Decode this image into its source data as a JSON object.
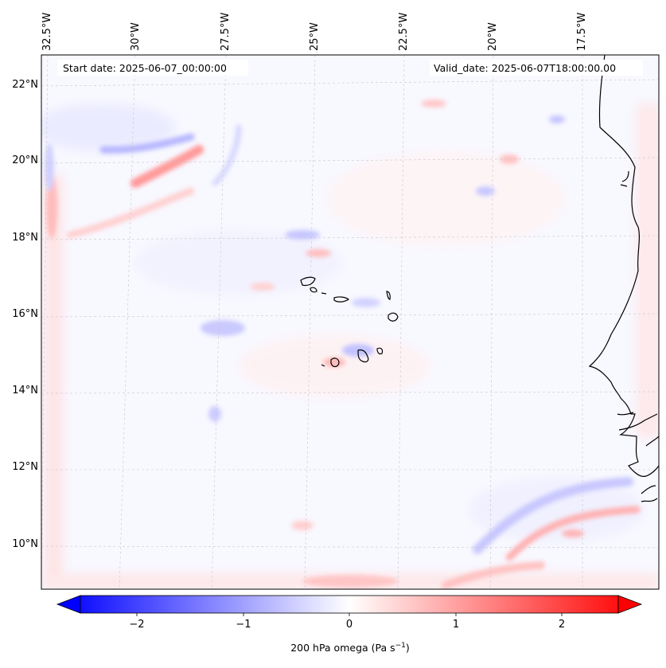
{
  "annotations": {
    "start_date": "Start date: 2025-06-07_00:00:00",
    "valid_date": "Valid_date: 2025-06-07T18:00:00.00"
  },
  "longitude_labels": [
    "32.5°W",
    "30°W",
    "27.5°W",
    "25°W",
    "22.5°W",
    "20°W",
    "17.5°W"
  ],
  "latitude_labels": [
    "22°N",
    "20°N",
    "18°N",
    "16°N",
    "14°N",
    "12°N",
    "10°N"
  ],
  "colorbar": {
    "ticks": [
      "−2",
      "−1",
      "0",
      "1",
      "2"
    ],
    "label_prefix": "200 hPa omega (Pa s",
    "label_exp": "−1",
    "label_suffix": ")",
    "range": [
      -2.6,
      2.6
    ],
    "extend": "both",
    "colormap": "bwr",
    "neg_color": "#0000ff",
    "zero_color": "#ffffff",
    "pos_color": "#ff0000"
  },
  "map": {
    "field": "200 hPa omega",
    "lon_range": [
      -33.0,
      -15.5
    ],
    "lat_range": [
      8.8,
      22.8
    ],
    "gridline_color": "#bbbbbb",
    "coastline_color": "#000000",
    "features": [
      "Cape Verde islands",
      "West African coast (Senegal / Gambia / Guinea-Bissau)"
    ]
  }
}
